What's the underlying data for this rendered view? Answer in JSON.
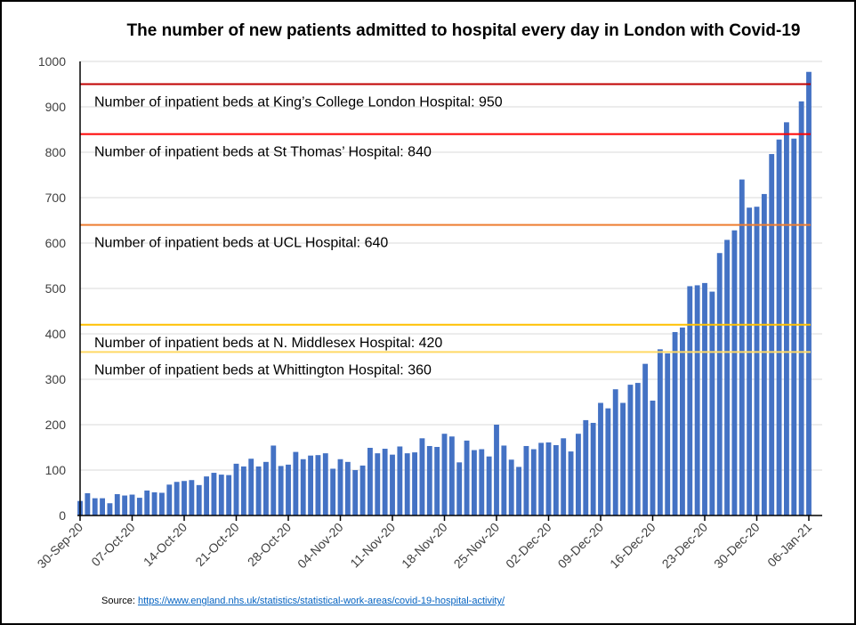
{
  "chart_data": {
    "type": "bar",
    "title": "The number of new patients admitted to hospital every day in London with Covid-19",
    "xlabel": "",
    "ylabel": "",
    "ylim": [
      0,
      1000
    ],
    "yticks": [
      0,
      100,
      200,
      300,
      400,
      500,
      600,
      700,
      800,
      900,
      1000
    ],
    "grid": true,
    "start_date": "30-Sep-20",
    "tick_labels": [
      "30-Sep-20",
      "07-Oct-20",
      "14-Oct-20",
      "21-Oct-20",
      "28-Oct-20",
      "04-Nov-20",
      "11-Nov-20",
      "18-Nov-20",
      "25-Nov-20",
      "02-Dec-20",
      "09-Dec-20",
      "16-Dec-20",
      "23-Dec-20",
      "30-Dec-20",
      "06-Jan-21"
    ],
    "tick_every_days": 7,
    "bar_color": "#4472c4",
    "values": [
      32,
      49,
      38,
      38,
      27,
      47,
      44,
      46,
      39,
      55,
      51,
      50,
      68,
      74,
      76,
      78,
      67,
      86,
      94,
      90,
      89,
      114,
      108,
      125,
      108,
      118,
      154,
      109,
      112,
      140,
      124,
      132,
      133,
      137,
      103,
      124,
      118,
      100,
      110,
      149,
      137,
      147,
      134,
      152,
      137,
      139,
      170,
      153,
      151,
      180,
      174,
      117,
      165,
      144,
      146,
      130,
      200,
      154,
      123,
      107,
      153,
      146,
      160,
      161,
      155,
      170,
      141,
      180,
      210,
      204,
      248,
      236,
      278,
      248,
      288,
      292,
      334,
      253,
      366,
      357,
      404,
      414,
      505,
      507,
      512,
      493,
      578,
      607,
      628,
      740,
      678,
      680,
      708,
      796,
      828,
      866,
      830,
      912,
      977
    ],
    "reference_lines": [
      {
        "label": "Number of inpatient beds at King’s College London Hospital: 950",
        "value": 950,
        "color": "#c00000"
      },
      {
        "label": "Number of inpatient beds at St Thomas’ Hospital: 840",
        "value": 840,
        "color": "#ff0000"
      },
      {
        "label": "Number of inpatient beds at UCL Hospital: 640",
        "value": 640,
        "color": "#ed7d31"
      },
      {
        "label": "Number of inpatient beds at N. Middlesex Hospital: 420",
        "value": 420,
        "color": "#ffc000"
      },
      {
        "label": "Number of inpatient beds at Whittington Hospital: 360",
        "value": 360,
        "color": "#ffd966"
      }
    ]
  },
  "source": {
    "prefix": "Source: ",
    "link": "https://www.england.nhs.uk/statistics/statistical-work-areas/covid-19-hospital-activity/"
  }
}
